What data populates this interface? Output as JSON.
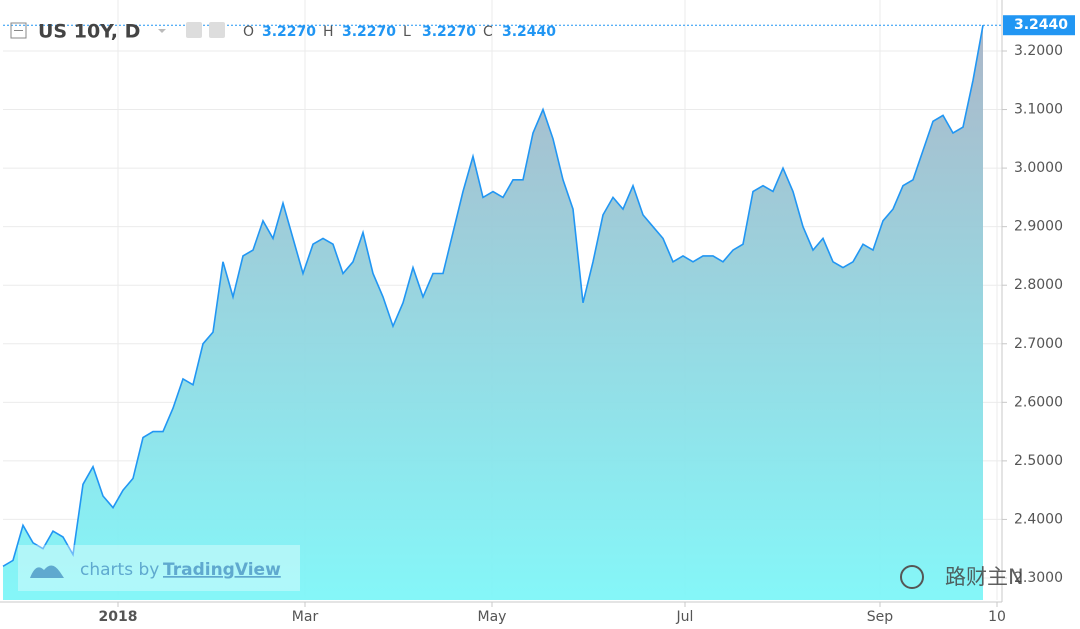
{
  "chart_data": {
    "type": "area",
    "title": "US 10Y, D",
    "ohlc": [
      {
        "name": "O",
        "label": "3.2270"
      },
      {
        "name": "H",
        "label": "3.2270"
      },
      {
        "name": "L",
        "label": "3.2270"
      },
      {
        "name": "C",
        "label": "3.2440"
      }
    ],
    "series": [
      {
        "name": "US 10Y",
        "color": "#2196f3",
        "values": [
          2.32,
          2.33,
          2.39,
          2.36,
          2.35,
          2.38,
          2.37,
          2.34,
          2.46,
          2.49,
          2.44,
          2.42,
          2.45,
          2.47,
          2.54,
          2.55,
          2.55,
          2.59,
          2.64,
          2.63,
          2.7,
          2.72,
          2.84,
          2.78,
          2.85,
          2.86,
          2.91,
          2.88,
          2.94,
          2.88,
          2.82,
          2.87,
          2.88,
          2.87,
          2.82,
          2.84,
          2.89,
          2.82,
          2.78,
          2.73,
          2.77,
          2.83,
          2.78,
          2.82,
          2.82,
          2.89,
          2.96,
          3.02,
          2.95,
          2.96,
          2.95,
          2.98,
          2.98,
          3.06,
          3.1,
          3.05,
          2.98,
          2.93,
          2.77,
          2.84,
          2.92,
          2.95,
          2.93,
          2.97,
          2.92,
          2.9,
          2.88,
          2.84,
          2.85,
          2.84,
          2.85,
          2.85,
          2.84,
          2.86,
          2.87,
          2.96,
          2.97,
          2.96,
          3.0,
          2.96,
          2.9,
          2.86,
          2.88,
          2.84,
          2.83,
          2.84,
          2.87,
          2.86,
          2.91,
          2.93,
          2.97,
          2.98,
          3.03,
          3.08,
          3.09,
          3.06,
          3.07,
          3.15,
          3.244
        ]
      }
    ],
    "last_label": {
      "value": 3.244,
      "label": "3.2440"
    },
    "xlim": [
      0,
      99.9
    ],
    "xticks": [
      {
        "value": 11.5,
        "label": "2018"
      },
      {
        "value": 30.2,
        "label": "Mar"
      },
      {
        "value": 48.9,
        "label": "May"
      },
      {
        "value": 68.2,
        "label": "Jul"
      },
      {
        "value": 87.7,
        "label": "Sep"
      },
      {
        "value": 99.4,
        "label": "10"
      }
    ],
    "ylim": [
      2.2624,
      3.2495
    ],
    "yticks": [
      {
        "value": 2.3,
        "label": "2.3000"
      },
      {
        "value": 2.4,
        "label": "2.4000"
      },
      {
        "value": 2.5,
        "label": "2.5000"
      },
      {
        "value": 2.6,
        "label": "2.6000"
      },
      {
        "value": 2.7,
        "label": "2.7000"
      },
      {
        "value": 2.8,
        "label": "2.8000"
      },
      {
        "value": 2.9,
        "label": "2.9000"
      },
      {
        "value": 3.0,
        "label": "3.0000"
      },
      {
        "value": 3.1,
        "label": "3.1000"
      },
      {
        "value": 3.2,
        "label": "3.2000"
      }
    ],
    "grid": true,
    "watermark": {
      "prefix": "charts by",
      "brand": "TradingView"
    },
    "corner_mark": "路财主N"
  }
}
